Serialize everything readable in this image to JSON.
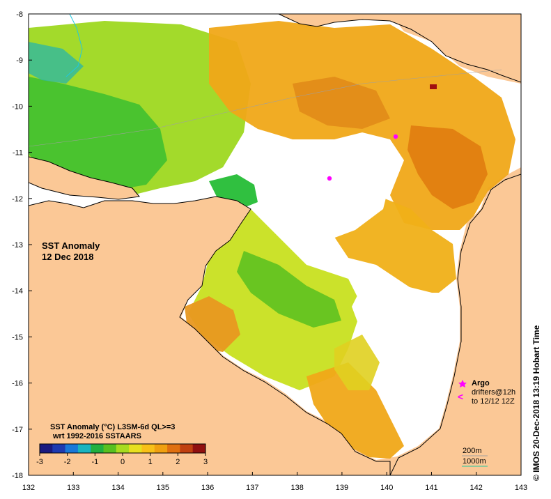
{
  "map": {
    "title": "SST Anomaly",
    "date": "12 Dec 2018",
    "lon_ticks": [
      "132",
      "133",
      "134",
      "135",
      "136",
      "137",
      "138",
      "139",
      "140",
      "141",
      "142",
      "143"
    ],
    "lat_ticks": [
      "-8",
      "-9",
      "-10",
      "-11",
      "-12",
      "-13",
      "-14",
      "-15",
      "-16",
      "-17",
      "-18"
    ],
    "lon_range": [
      132,
      143
    ],
    "lat_range": [
      -18,
      -8
    ],
    "land_color": "#fbc896",
    "no_data_color": "#ffffff"
  },
  "colorbar": {
    "title": "SST Anomaly (°C) L3SM-6d QL>=3",
    "subtitle": "wrt 1992-2016 SSTAARS",
    "ticks": [
      "-3",
      "-2",
      "-1",
      "0",
      "1",
      "2",
      "3"
    ],
    "colors": [
      "#1a1a80",
      "#1e3ab0",
      "#1a78d8",
      "#1ab4c0",
      "#20b040",
      "#58c020",
      "#a8dc20",
      "#e8e020",
      "#f8c018",
      "#f0a010",
      "#e07010",
      "#c04010",
      "#901010"
    ]
  },
  "legend": {
    "argo_label": "Argo",
    "drifters_label": "drifters@12h",
    "drifters_time": "to 12/12 12Z",
    "argo_color": "#ff00ff",
    "depth_200": "200m",
    "depth_1000": "1000m"
  },
  "credit": "© IMOS 20-Dec-2018 13:19 Hobart Time"
}
